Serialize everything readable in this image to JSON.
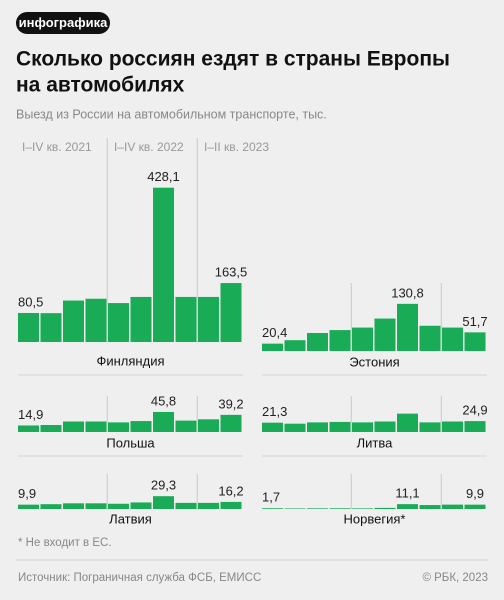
{
  "badge": "инфографика",
  "title": [
    "Сколько россиян ездят в страны Европы",
    "на автомобилях"
  ],
  "subtitle": "Выезд из России на автомобильном транспорте, тыс.",
  "period_labels": [
    "I–IV кв. 2021",
    "I–IV кв. 2022",
    "I–II кв. 2023"
  ],
  "footnote": "* Не входит в ЕС.",
  "source": "Источник: Пограничная служба ФСБ, ЕМИСС",
  "credit": "© РБК, 2023",
  "chart_data": [
    {
      "type": "bar",
      "title": "Финляндия",
      "color": "#1aab57",
      "ylim": [
        0,
        430
      ],
      "values": [
        80.5,
        80,
        115,
        120,
        108,
        125,
        428.1,
        125,
        125,
        163.5
      ],
      "value_labels": [
        "80,5",
        null,
        null,
        null,
        null,
        null,
        "428,1",
        null,
        null,
        "163,5"
      ]
    },
    {
      "type": "bar",
      "title": "Эстония",
      "color": "#1aab57",
      "ylim": [
        0,
        430
      ],
      "values": [
        20.4,
        30,
        50,
        58,
        65,
        90,
        130.8,
        70,
        65,
        51.7
      ],
      "value_labels": [
        "20,4",
        null,
        null,
        null,
        null,
        null,
        "130,8",
        null,
        null,
        "51,7"
      ]
    },
    {
      "type": "bar",
      "title": "Польша",
      "color": "#1aab57",
      "ylim": [
        0,
        80
      ],
      "values": [
        14.9,
        16,
        24,
        24,
        22,
        25,
        45.8,
        26,
        29,
        39.2
      ],
      "value_labels": [
        "14,9",
        null,
        null,
        null,
        null,
        null,
        "45,8",
        null,
        null,
        "39,2"
      ]
    },
    {
      "type": "bar",
      "title": "Литва",
      "color": "#1aab57",
      "ylim": [
        0,
        80
      ],
      "values": [
        21.3,
        19,
        22,
        23,
        22,
        24,
        42,
        22,
        24,
        24.9
      ],
      "value_labels": [
        "21,3",
        null,
        null,
        null,
        null,
        null,
        null,
        null,
        null,
        "24,9"
      ]
    },
    {
      "type": "bar",
      "title": "Латвия",
      "color": "#1aab57",
      "ylim": [
        0,
        80
      ],
      "values": [
        9.9,
        11,
        13,
        13,
        12,
        15,
        29.3,
        14,
        14,
        16.2
      ],
      "value_labels": [
        "9,9",
        null,
        null,
        null,
        null,
        null,
        "29,3",
        null,
        null,
        "16,2"
      ]
    },
    {
      "type": "bar",
      "title": "Норвегия*",
      "color": "#1aab57",
      "ylim": [
        0,
        80
      ],
      "values": [
        1.7,
        1.2,
        1.5,
        1.6,
        1.4,
        2.5,
        11.1,
        9,
        10,
        9.9
      ],
      "value_labels": [
        "1,7",
        null,
        null,
        null,
        null,
        null,
        "11,1",
        null,
        null,
        "9,9"
      ]
    }
  ]
}
